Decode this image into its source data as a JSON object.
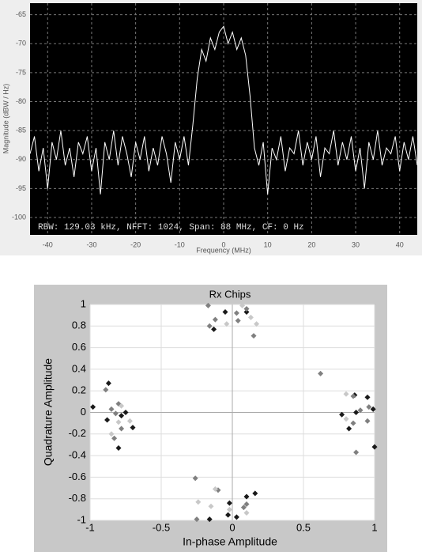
{
  "chart_data": [
    {
      "type": "line",
      "x_label": "Frequency (MHz)",
      "y_label": "Magnitude (dBW / Hz)",
      "annotation": "RBW: 129.03 kHz, NFFT: 1024, Span: 88 MHz, CF: 0 Hz",
      "x": [
        -44,
        -43,
        -42,
        -41,
        -40,
        -39,
        -38,
        -37,
        -36,
        -35,
        -34,
        -33,
        -32,
        -31,
        -30,
        -29,
        -28,
        -27,
        -26,
        -25,
        -24,
        -23,
        -22,
        -21,
        -20,
        -19,
        -18,
        -17,
        -16,
        -15,
        -14,
        -13,
        -12,
        -11,
        -10,
        -9,
        -8,
        -7,
        -6,
        -5,
        -4,
        -3,
        -2,
        -1,
        0,
        1,
        2,
        3,
        4,
        5,
        6,
        7,
        8,
        9,
        10,
        11,
        12,
        13,
        14,
        15,
        16,
        17,
        18,
        19,
        20,
        21,
        22,
        23,
        24,
        25,
        26,
        27,
        28,
        29,
        30,
        31,
        32,
        33,
        34,
        35,
        36,
        37,
        38,
        39,
        40,
        41,
        42,
        43,
        44
      ],
      "values": [
        -89,
        -86,
        -92,
        -88,
        -95,
        -87,
        -90,
        -85,
        -91,
        -88,
        -93,
        -87,
        -89,
        -86,
        -92,
        -88,
        -96,
        -87,
        -90,
        -85,
        -91,
        -86,
        -89,
        -93,
        -87,
        -90,
        -86,
        -92,
        -88,
        -91,
        -86,
        -89,
        -94,
        -87,
        -90,
        -86,
        -91,
        -84,
        -76,
        -71,
        -73,
        -69,
        -71,
        -68,
        -67,
        -70,
        -68,
        -71,
        -69,
        -72,
        -79,
        -88,
        -91,
        -87,
        -96,
        -88,
        -90,
        -86,
        -92,
        -88,
        -89,
        -85,
        -91,
        -87,
        -90,
        -86,
        -93,
        -88,
        -89,
        -85,
        -91,
        -87,
        -90,
        -86,
        -92,
        -88,
        -95,
        -87,
        -90,
        -85,
        -91,
        -88,
        -89,
        -86,
        -92,
        -87,
        -90,
        -86,
        -91
      ],
      "color": "#ffffff",
      "xlim": [
        -44,
        44
      ],
      "ylim": [
        -103,
        -63
      ],
      "xticks": [
        -40,
        -30,
        -20,
        -10,
        0,
        10,
        20,
        30,
        40
      ],
      "yticks": [
        -65,
        -70,
        -75,
        -80,
        -85,
        -90,
        -95,
        -100
      ],
      "grid": true
    },
    {
      "type": "scatter",
      "title": "Rx Chips",
      "x_label": "In-phase Amplitude",
      "y_label": "Quadrature Amplitude",
      "series": [
        {
          "color": "#1a1a1a",
          "x": [
            -0.98,
            -0.87,
            -0.78,
            -0.75,
            -0.88,
            -0.7,
            -0.8,
            -0.13,
            -0.05,
            0.1,
            0.86,
            0.95,
            0.99,
            0.87,
            0.77,
            0.82,
            1,
            -0.02,
            -0.03,
            -0.16,
            0.1,
            0.16,
            0.03
          ],
          "values": [
            0.05,
            0.27,
            -0.03,
            0,
            -0.07,
            -0.14,
            -0.33,
            0.77,
            0.93,
            0.93,
            0.16,
            0.14,
            0.03,
            0,
            -0.02,
            -0.15,
            -0.32,
            -0.84,
            -0.95,
            -0.99,
            -0.78,
            -0.75,
            -0.97
          ]
        },
        {
          "color": "#808080",
          "x": [
            -0.89,
            -0.85,
            -0.8,
            -0.82,
            -0.78,
            -0.83,
            -0.17,
            -0.12,
            -0.16,
            0.03,
            0.04,
            0.1,
            0.15,
            0.62,
            0.85,
            0.96,
            0.9,
            0.85,
            0.95,
            0.87,
            -0.26,
            -0.1,
            -0.25,
            0.1,
            0.08
          ],
          "values": [
            0.21,
            0.03,
            0.08,
            -0.01,
            -0.15,
            -0.24,
            0.99,
            0.86,
            0.8,
            0.92,
            0.85,
            0.96,
            0.71,
            0.36,
            0.15,
            0.05,
            0.02,
            -0.1,
            -0.08,
            -0.37,
            -0.61,
            -0.72,
            -0.99,
            -0.85,
            -0.88
          ]
        },
        {
          "color": "#c8c8c8",
          "x": [
            -0.78,
            -0.8,
            -0.72,
            -0.85,
            -0.04,
            0.13,
            0.17,
            0.07,
            0.8,
            0.8,
            -0.12,
            -0.24,
            -0.15,
            -0.02,
            0.1
          ],
          "values": [
            0.06,
            -0.09,
            -0.08,
            -0.2,
            0.82,
            0.88,
            0.82,
            0.99,
            0.17,
            -0.06,
            -0.71,
            -0.83,
            -0.87,
            -0.9,
            -0.93
          ]
        }
      ],
      "xlim": [
        -1,
        1
      ],
      "ylim": [
        -1,
        1
      ],
      "xticks": [
        -1,
        -0.5,
        0,
        0.5,
        1
      ],
      "yticks": [
        -1,
        -0.8,
        -0.6,
        -0.4,
        -0.2,
        0,
        0.2,
        0.4,
        0.6,
        0.8,
        1
      ],
      "grid": true
    }
  ]
}
